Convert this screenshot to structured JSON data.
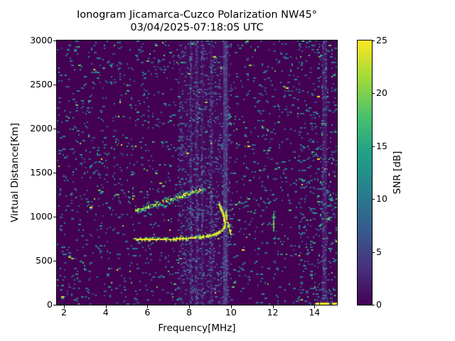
{
  "figure": {
    "title": "Ionogram Jicamarca-Cuzco Polarization NW45°",
    "subtitle": "03/04/2025-07:18:05 UTC",
    "xlabel": "Frequency[MHz]",
    "ylabel": "Virtual Distance[Km]",
    "colorbar_label": "SNR [dB]"
  },
  "chart_data": {
    "type": "heatmap",
    "title": "Ionogram Jicamarca-Cuzco Polarization NW45°",
    "subtitle": "03/04/2025-07:18:05 UTC",
    "xlabel": "Frequency[MHz]",
    "ylabel": "Virtual Distance[Km]",
    "xlim": [
      1.66,
      15.08
    ],
    "ylim": [
      0,
      3000
    ],
    "xticks": [
      2,
      4,
      6,
      8,
      10,
      12,
      14
    ],
    "yticks": [
      0,
      500,
      1000,
      1500,
      2000,
      2500,
      3000
    ],
    "grid": false,
    "colorbar": {
      "label": "SNR [dB]",
      "ticks": [
        0,
        5,
        10,
        15,
        20,
        25
      ],
      "range": [
        0,
        25
      ],
      "colormap": "viridis",
      "stops": [
        "#440154",
        "#46327e",
        "#365c8d",
        "#277f8e",
        "#1fa187",
        "#4ac16d",
        "#a0da39",
        "#fde725"
      ]
    },
    "background_color": "#440154",
    "noise": {
      "base_density": 0.05,
      "band_density": 0.13,
      "right_density": 0.1,
      "right_region_start_mhz": 13.2,
      "speckle_dim_colors": [
        "#3b518b",
        "#31688e",
        "#2e6e8e",
        "#26828e",
        "#21918c"
      ],
      "speckle_bright_colors": [
        "#1fa187",
        "#35b779",
        "#5ec962"
      ],
      "speckle_rare_colors": [
        "#a0da39",
        "#fde725"
      ],
      "stripe_color": "#5a5c9e"
    },
    "rfi_stripes": [
      {
        "f0": 7.5,
        "f1": 9.95,
        "alpha": 0.09,
        "dash": 0.2
      },
      {
        "f0": 8.02,
        "f1": 8.14,
        "alpha": 0.2,
        "dash": 0.35
      },
      {
        "f0": 8.3,
        "f1": 8.44,
        "alpha": 0.2,
        "dash": 0.35
      },
      {
        "f0": 8.56,
        "f1": 8.66,
        "alpha": 0.16,
        "dash": 0.3
      },
      {
        "f0": 9.0,
        "f1": 9.12,
        "alpha": 0.14,
        "dash": 0.3
      },
      {
        "f0": 9.63,
        "f1": 9.85,
        "alpha": 0.5,
        "dash": 0.55
      },
      {
        "f0": 14.35,
        "f1": 14.62,
        "alpha": 0.28,
        "dash": 0.45
      }
    ],
    "traces": [
      {
        "name": "f_layer_o_mode",
        "color": "#fde725",
        "points": [
          [
            5.35,
            748
          ],
          [
            5.7,
            743
          ],
          [
            6.1,
            740
          ],
          [
            6.5,
            739
          ],
          [
            6.9,
            741
          ],
          [
            7.3,
            745
          ],
          [
            7.7,
            750
          ],
          [
            8.1,
            757
          ],
          [
            8.5,
            767
          ],
          [
            8.9,
            781
          ],
          [
            9.2,
            798
          ],
          [
            9.4,
            818
          ],
          [
            9.55,
            842
          ],
          [
            9.65,
            872
          ],
          [
            9.7,
            908
          ],
          [
            9.68,
            955
          ],
          [
            9.63,
            1010
          ],
          [
            9.55,
            1065
          ],
          [
            9.47,
            1110
          ],
          [
            9.43,
            1145
          ]
        ]
      },
      {
        "name": "f_layer_x_mode",
        "color": "#e2e419",
        "points": [
          [
            9.97,
            795
          ],
          [
            9.93,
            830
          ],
          [
            9.88,
            875
          ],
          [
            9.83,
            925
          ],
          [
            9.78,
            975
          ],
          [
            9.74,
            1025
          ],
          [
            9.72,
            1075
          ]
        ]
      },
      {
        "name": "scatter_layer",
        "from": [
          5.4,
          1075
        ],
        "to": [
          8.7,
          1325
        ],
        "spread_km": 55,
        "core_colors": [
          "#d2e21b",
          "#fde725",
          "#5ec962",
          "#35b779"
        ],
        "halo_colors": [
          "#21918c",
          "#26828e",
          "#31688e",
          "#35b779"
        ]
      },
      {
        "name": "rfi_burst",
        "freq": 12.0,
        "km": [
          860,
          1055
        ],
        "colors": [
          "#35b779",
          "#4ac16d",
          "#21918c",
          "#d2e21b"
        ]
      },
      {
        "name": "bottom_interference",
        "f0": 13.95,
        "f1": 15.05,
        "km": 15,
        "color": "#fde725"
      }
    ]
  }
}
